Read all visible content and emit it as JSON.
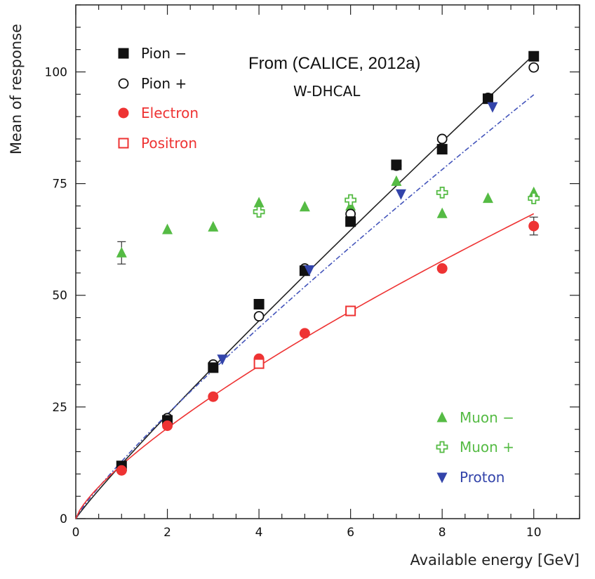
{
  "chart_data": {
    "type": "scatter",
    "title": "",
    "annotations": [
      "From (CALICE, 2012a)",
      "W-DHCAL"
    ],
    "xlabel": "Available energy [GeV]",
    "ylabel": "Mean of response",
    "xlim": [
      0,
      11
    ],
    "ylim": [
      0,
      115
    ],
    "x_ticks": [
      0,
      2,
      4,
      6,
      8,
      10
    ],
    "y_ticks": [
      0,
      25,
      50,
      75,
      100
    ],
    "x_tick_labels": [
      "0",
      "2",
      "4",
      "6",
      "8",
      "10"
    ],
    "y_tick_labels": [
      "0",
      "25",
      "50",
      "75",
      "100"
    ],
    "grid": false,
    "series": [
      {
        "name": "Pion −",
        "marker": "square-filled",
        "color": "#111111",
        "x": [
          1,
          2,
          3,
          4,
          5,
          6,
          7,
          8,
          9,
          10
        ],
        "y": [
          11.8,
          22.0,
          33.8,
          48.0,
          55.5,
          66.5,
          79.2,
          82.7,
          94.0,
          103.5
        ]
      },
      {
        "name": "Pion +",
        "marker": "circle-open",
        "color": "#111111",
        "x": [
          1,
          2,
          3,
          4,
          5,
          6,
          7,
          8,
          9,
          10
        ],
        "y": [
          11.5,
          22.5,
          34.5,
          45.3,
          56.0,
          68.2,
          79.0,
          85.0,
          94.2,
          101.0
        ]
      },
      {
        "name": "Electron",
        "marker": "circle-filled",
        "color": "#ee3333",
        "x": [
          1,
          2,
          3,
          4,
          5,
          6,
          8,
          10
        ],
        "y": [
          10.8,
          20.8,
          27.3,
          35.8,
          41.5,
          46.5,
          56.0,
          65.5
        ]
      },
      {
        "name": "Positron",
        "marker": "square-open",
        "color": "#ee3333",
        "x": [
          4,
          6
        ],
        "y": [
          34.7,
          46.5
        ]
      },
      {
        "name": "Muon −",
        "marker": "triangle-up-filled",
        "color": "#55bb44",
        "x": [
          1,
          2,
          3,
          4,
          5,
          6,
          7,
          8,
          9,
          10
        ],
        "y": [
          59.5,
          64.7,
          65.3,
          70.7,
          69.8,
          70.0,
          75.5,
          68.3,
          71.7,
          73.0
        ]
      },
      {
        "name": "Muon +",
        "marker": "cross-open",
        "color": "#55bb44",
        "x": [
          4,
          6,
          8,
          10
        ],
        "y": [
          68.7,
          71.3,
          73.0,
          71.7
        ]
      },
      {
        "name": "Proton",
        "marker": "triangle-down-filled",
        "color": "#3344aa",
        "x": [
          3.2,
          5.1,
          7.1,
          9.1
        ],
        "y": [
          35.7,
          55.7,
          72.7,
          92.2
        ]
      }
    ],
    "error_bars": [
      {
        "series": "Muon −",
        "x": 1,
        "y": 59.5,
        "err": 2.5
      },
      {
        "series": "Electron",
        "x": 10,
        "y": 65.5,
        "err": 2.0
      }
    ],
    "fits": [
      {
        "name": "hadron fit",
        "style": "solid",
        "color": "#222222",
        "a": 12.2,
        "p": 0.93
      },
      {
        "name": "proton fit",
        "style": "dash-dot",
        "color": "#4455bb",
        "a": 12.8,
        "p": 0.87
      },
      {
        "name": "electron fit",
        "style": "solid",
        "color": "#ee3333",
        "a": 12.0,
        "p": 0.755
      }
    ],
    "fit_range": [
      0,
      10
    ],
    "legend_placement": [
      "top-left",
      "bottom-right"
    ]
  }
}
